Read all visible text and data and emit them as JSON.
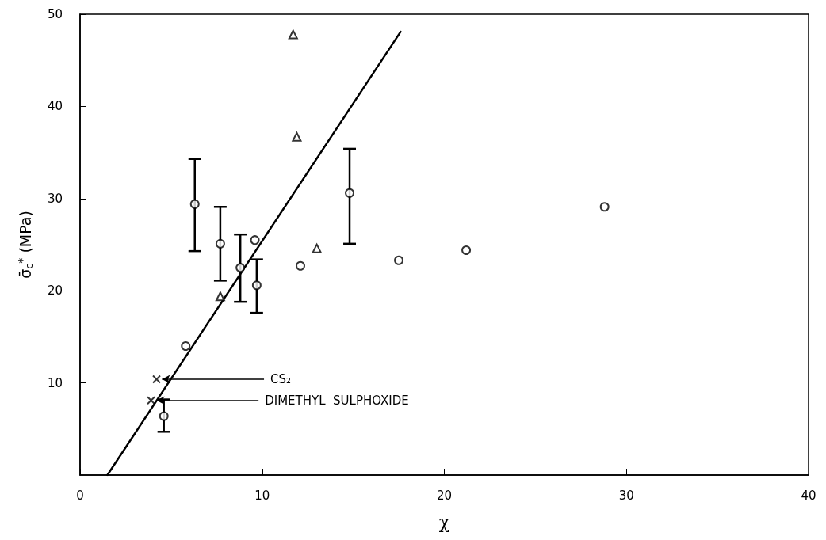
{
  "chart_data": {
    "type": "scatter",
    "xlabel": "χ",
    "ylabel": "σ̄$_{c}$$^{*}$ (MPa)",
    "xlim": [
      0,
      40
    ],
    "xticks": [
      0,
      10,
      20,
      30,
      40
    ],
    "ylim": [
      0,
      50
    ],
    "yticks": [
      10,
      20,
      30,
      40,
      50
    ],
    "series": [
      {
        "marker": "circle",
        "color": "#000000",
        "x": [
          6.3,
          7.7,
          8.8,
          9.6,
          9.7,
          5.8,
          4.6,
          12.1,
          14.8,
          17.5,
          21.2,
          28.8
        ],
        "values": [
          29.4,
          25.1,
          22.5,
          25.5,
          20.6,
          14.0,
          6.4,
          22.7,
          30.6,
          23.3,
          24.4,
          29.1
        ],
        "errors": [
          [
            24.3,
            34.3
          ],
          [
            21.1,
            29.1
          ],
          [
            18.8,
            26.1
          ],
          null,
          [
            17.6,
            23.4
          ],
          null,
          [
            4.7,
            8.2
          ],
          null,
          [
            25.1,
            35.4
          ],
          null,
          null,
          null
        ]
      },
      {
        "marker": "triangle",
        "color": "#000000",
        "x": [
          11.7,
          11.9,
          13.0,
          7.7
        ],
        "values": [
          47.8,
          36.7,
          24.6,
          19.4
        ]
      },
      {
        "marker": "cross",
        "color": "#000000",
        "x": [
          4.2,
          3.9
        ],
        "values": [
          10.4,
          8.1
        ]
      },
      {
        "type": "line",
        "marker": "none",
        "line_style": "solid",
        "color": "#000000",
        "x": [
          1.5,
          17.6
        ],
        "values": [
          0,
          48.1
        ]
      }
    ],
    "annotations": [
      {
        "text": "CS₂",
        "x": 4.2,
        "y": 10.4
      },
      {
        "text": "DIMETHYL  SULPHOXIDE",
        "x": 3.9,
        "y": 8.1
      }
    ]
  }
}
